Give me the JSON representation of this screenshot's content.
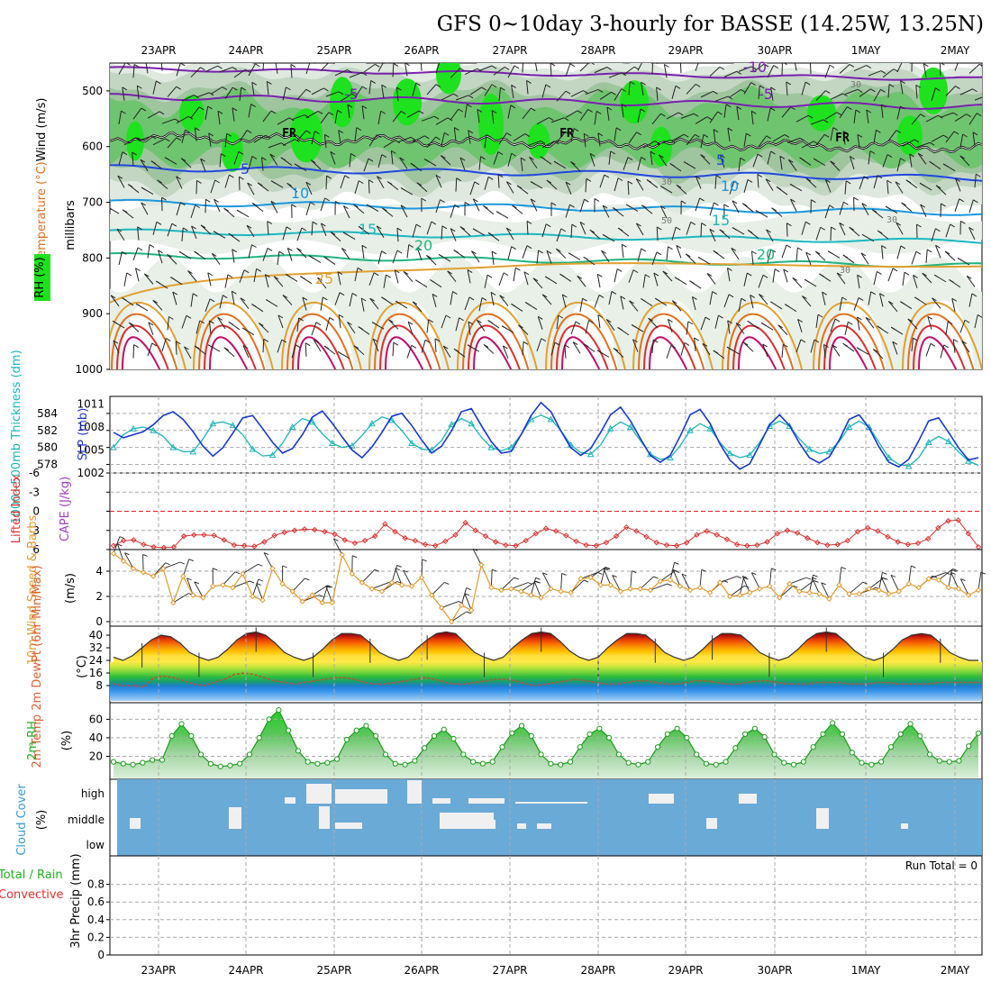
{
  "title": "GFS 0~10day 3-hourly for BASSE (14.25W, 13.25N)",
  "dates": [
    "23APR",
    "24APR",
    "25APR",
    "26APR",
    "27APR",
    "28APR",
    "29APR",
    "30APR",
    "1MAY",
    "2MAY"
  ],
  "colors": {
    "frame": "#000000",
    "grid": "#aaaaaa",
    "rh_dark": "#1fe21f",
    "rh_mid": "#6ec96e",
    "rh_light": "#c9dcc9",
    "cloud_bg": "#6aaad6"
  },
  "chart_data": [
    {
      "id": "upper_air",
      "type": "contour",
      "ylabel_parts": [
        "RH (%)",
        "Temperature (°C)",
        "Wind (m/s)"
      ],
      "ylabel2": "millibars",
      "y_ticks": [
        500,
        600,
        700,
        800,
        900,
        1000
      ],
      "ylim": [
        450,
        1000
      ],
      "isotherm_labels": [
        "-10",
        "-5",
        "-5",
        "5",
        "5",
        "10",
        "10",
        "15",
        "15",
        "20",
        "20",
        "25"
      ],
      "freezing_label": "FR",
      "rh_labels": [
        "30",
        "30",
        "30",
        "30",
        "50"
      ]
    },
    {
      "id": "slp_thickness",
      "type": "line",
      "ylabel_left": "1000~500mb Thickness (dm)",
      "ylabel_right": "SLP (mb)",
      "left_ticks": [
        578,
        580,
        582,
        584
      ],
      "right_ticks": [
        1002,
        1005,
        1008,
        1011
      ],
      "ylim_left": [
        577,
        586
      ],
      "ylim_right": [
        1002,
        1012
      ],
      "series": [
        {
          "name": "thickness",
          "values": [
            580,
            581.5,
            582.2,
            582.4,
            582,
            581.3,
            580,
            579.5,
            579.5,
            581,
            582.8,
            583,
            582.6,
            581.5,
            579.8,
            579,
            579.1,
            580.5,
            582.4,
            583.4,
            583,
            581.6,
            580.5,
            580,
            580.2,
            581.4,
            582.8,
            583.6,
            583.2,
            582,
            580.5,
            579.8,
            579.7,
            580.8,
            582.7,
            583.4,
            582.8,
            581.2,
            580,
            579.6,
            580,
            581.5,
            583.3,
            583.8,
            583.3,
            582,
            580.3,
            579.4,
            579.2,
            580.3,
            582.2,
            583,
            582.4,
            580.8,
            579.2,
            578.6,
            578.8,
            580.2,
            582,
            582.8,
            582.2,
            580.6,
            579.3,
            578.8,
            579.1,
            580.6,
            582.5,
            583.1,
            582.5,
            581,
            579.8,
            579.3,
            579.5,
            580.7,
            582.4,
            583.1,
            582.4,
            580.6,
            578.8,
            578,
            577.8,
            578.8,
            580.6,
            581.3,
            580.7,
            579.5,
            578.4,
            577.9
          ]
        },
        {
          "name": "slp",
          "values": [
            1007.3,
            1006.6,
            1007,
            1007.4,
            1008.3,
            1009.5,
            1010,
            1009,
            1007.4,
            1005.5,
            1004.2,
            1005.3,
            1007.2,
            1009.2,
            1009.5,
            1007.8,
            1006,
            1004.6,
            1005.2,
            1007,
            1009.3,
            1010.1,
            1008.5,
            1006.7,
            1005,
            1004,
            1005.4,
            1007.3,
            1009.4,
            1009.8,
            1008.2,
            1006.3,
            1004.6,
            1005.5,
            1007.5,
            1010,
            1010.4,
            1008.2,
            1006.1,
            1004.6,
            1004.8,
            1007,
            1009.5,
            1011.2,
            1010,
            1007.5,
            1005.3,
            1004.3,
            1005.2,
            1007.3,
            1009.6,
            1010.6,
            1008.8,
            1006.5,
            1004.3,
            1003.4,
            1004.3,
            1006.8,
            1009.6,
            1010.3,
            1008.5,
            1005.8,
            1003.7,
            1002.5,
            1003.2,
            1005.7,
            1008.3,
            1009.6,
            1008.2,
            1005.9,
            1004,
            1003.3,
            1004.1,
            1006.3,
            1009,
            1009.6,
            1007.9,
            1005.4,
            1003.4,
            1002.8,
            1003.8,
            1006.2,
            1008.8,
            1009.2,
            1007.3,
            1005.3,
            1003.7,
            1004
          ]
        }
      ]
    },
    {
      "id": "stability",
      "type": "line",
      "ylabel_left": "Lifted Index",
      "ylabel_right": "CAPE (J/kg)",
      "left_ticks": [
        "-6",
        "-3",
        "0",
        "3",
        "6"
      ],
      "ylim": [
        -6,
        6
      ],
      "series": [
        {
          "name": "lifted_index",
          "values": [
            5.4,
            4.6,
            4.5,
            5.2,
            5.6,
            5.7,
            5.6,
            3.9,
            3.7,
            3.7,
            3.8,
            4.5,
            5.3,
            5.4,
            5.5,
            4.8,
            3.8,
            3.3,
            3.0,
            2.8,
            2.9,
            3.2,
            3.6,
            4.5,
            5.0,
            4.6,
            3.9,
            2.0,
            3.2,
            4.2,
            4.6,
            5.2,
            5.4,
            4.7,
            3.7,
            1.8,
            3.0,
            3.9,
            4.8,
            5.3,
            5.4,
            4.6,
            3.5,
            2.7,
            3.1,
            3.8,
            4.7,
            5.3,
            5.4,
            4.9,
            3.9,
            2.5,
            3.1,
            4.0,
            4.9,
            5.3,
            5.4,
            4.9,
            3.7,
            3.1,
            3.7,
            4.4,
            5.2,
            5.4,
            5.3,
            4.8,
            3.5,
            3.0,
            3.4,
            4.2,
            4.9,
            5.3,
            5.2,
            4.6,
            3.2,
            2.6,
            3.1,
            4.0,
            4.8,
            5.2,
            5.0,
            4.3,
            2.6,
            1.5,
            1.4,
            3.5,
            5.6
          ]
        }
      ]
    },
    {
      "id": "wind10m",
      "type": "line",
      "ylabel_left": "10m Wind Speed & Barbs",
      "ylabel_units": "(m/s)",
      "left_ticks": [
        "0",
        "2",
        "4"
      ],
      "ylim": [
        0,
        5.5
      ],
      "series": [
        {
          "name": "speed",
          "values": [
            5.4,
            4.8,
            4.2,
            3.9,
            3.6,
            4.2,
            1.5,
            3.6,
            2.1,
            1.9,
            2.8,
            2.9,
            2.7,
            3.8,
            2.0,
            1.7,
            4.2,
            3.0,
            2.4,
            1.6,
            2.1,
            1.5,
            1.5,
            5.3,
            3.8,
            3.1,
            2.6,
            2.4,
            3.1,
            2.9,
            2.8,
            3.5,
            2.1,
            1.1,
            0.0,
            1.3,
            0.9,
            4.5,
            2.7,
            2.5,
            2.6,
            2.4,
            2.1,
            1.9,
            2.6,
            2.4,
            2.3,
            3.4,
            3.5,
            2.9,
            2.9,
            2.4,
            2.6,
            2.6,
            2.5,
            3.2,
            3.3,
            2.8,
            2.5,
            2.7,
            2.3,
            3.1,
            2.0,
            2.1,
            2.3,
            2.6,
            2.8,
            1.9,
            3.0,
            2.4,
            2.3,
            2.2,
            1.8,
            2.9,
            2.2,
            2.2,
            2.6,
            2.5,
            2.2,
            2.4,
            3.0,
            2.7,
            3.4,
            3.3,
            2.7,
            2.6,
            2.1,
            2.5
          ]
        }
      ]
    },
    {
      "id": "temp2m",
      "type": "area",
      "ylabel_left": "2m Temp 2m DewPt (6hr Min/Max)",
      "ylabel_units": "(°C)",
      "left_ticks": [
        "8",
        "16",
        "24",
        "32",
        "40"
      ],
      "ylim": [
        0,
        44
      ],
      "series": [
        {
          "name": "temperature",
          "values": [
            26,
            24,
            27,
            32,
            37,
            40,
            39,
            35,
            29,
            26,
            24,
            26,
            31,
            37,
            41,
            42,
            40,
            35,
            29,
            26,
            24,
            26,
            31,
            37,
            41,
            41,
            40,
            35,
            29,
            26,
            24,
            26,
            32,
            37,
            41,
            42,
            41,
            35,
            29,
            26,
            24,
            26,
            32,
            37,
            41,
            42,
            41,
            36,
            30,
            26,
            24,
            26,
            32,
            37,
            41,
            41,
            40,
            35,
            29,
            26,
            24,
            26,
            31,
            37,
            41,
            41,
            40,
            35,
            29,
            26,
            24,
            26,
            31,
            37,
            41,
            42,
            41,
            36,
            30,
            26,
            24,
            26,
            31,
            37,
            40,
            41,
            40,
            35,
            29,
            26,
            24,
            24
          ]
        },
        {
          "name": "dewpoint",
          "values": [
            9,
            8,
            8,
            7,
            13,
            14,
            13,
            11,
            9,
            8,
            10,
            12,
            15,
            16,
            15,
            13,
            11,
            10,
            9,
            10,
            11,
            12,
            13,
            13,
            12,
            10,
            9,
            9,
            10,
            11,
            12,
            13,
            12,
            10,
            9,
            9,
            10,
            11,
            12,
            12,
            11,
            9,
            8,
            9,
            10,
            11,
            12,
            11,
            10,
            9,
            9,
            10,
            11,
            11,
            10,
            9,
            9,
            10,
            11,
            11,
            10,
            9,
            9,
            10,
            11,
            11,
            10,
            9,
            9,
            9,
            10,
            10,
            10,
            9,
            9,
            9,
            10,
            10,
            9,
            9,
            9,
            9,
            10,
            10,
            10,
            10,
            10
          ]
        }
      ]
    },
    {
      "id": "rh2m",
      "type": "area",
      "ylabel_left": "2m RH",
      "ylabel_units": "(%)",
      "left_ticks": [
        "20",
        "40",
        "60"
      ],
      "ylim": [
        0,
        75
      ],
      "series": [
        {
          "name": "rh",
          "values": [
            14,
            12,
            11,
            13,
            16,
            16,
            42,
            55,
            42,
            22,
            12,
            9,
            10,
            12,
            22,
            40,
            60,
            70,
            48,
            26,
            14,
            12,
            13,
            17,
            38,
            48,
            53,
            42,
            22,
            12,
            11,
            15,
            29,
            42,
            49,
            39,
            22,
            14,
            12,
            14,
            30,
            45,
            53,
            42,
            22,
            12,
            11,
            14,
            30,
            44,
            50,
            40,
            22,
            13,
            11,
            14,
            30,
            44,
            50,
            40,
            22,
            12,
            11,
            14,
            29,
            44,
            50,
            41,
            22,
            13,
            11,
            14,
            30,
            44,
            56,
            44,
            24,
            13,
            11,
            14,
            30,
            44,
            55,
            42,
            22,
            15,
            14,
            15,
            31,
            45
          ]
        }
      ]
    },
    {
      "id": "cloud",
      "type": "bar",
      "ylabel_left": "Cloud Cover",
      "ylabel_units": "(%)",
      "left_ticks": [
        "low",
        "middle",
        "high"
      ]
    },
    {
      "id": "precip",
      "type": "bar",
      "ylabel_left": "3hr Precip (mm)",
      "ylabel_left2": "Total / Rain",
      "ylabel_left3": "Convective",
      "left_ticks": [
        "0",
        "0.2",
        "0.4",
        "0.6",
        "0.8"
      ],
      "ylim": [
        0,
        1
      ],
      "run_total": "Run Total = 0",
      "values": []
    }
  ]
}
